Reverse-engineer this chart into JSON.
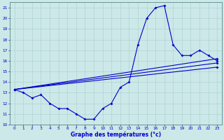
{
  "title": "Graphe des températures (°c)",
  "bg_color": "#cce8e8",
  "grid_color": "#aacece",
  "line_color": "#0000cc",
  "xlim": [
    -0.5,
    23.5
  ],
  "ylim": [
    10,
    21.5
  ],
  "xticks": [
    0,
    1,
    2,
    3,
    4,
    5,
    6,
    7,
    8,
    9,
    10,
    11,
    12,
    13,
    14,
    15,
    16,
    17,
    18,
    19,
    20,
    21,
    22,
    23
  ],
  "yticks": [
    10,
    11,
    12,
    13,
    14,
    15,
    16,
    17,
    18,
    19,
    20,
    21
  ],
  "curve_x": [
    0,
    1,
    2,
    3,
    4,
    5,
    6,
    7,
    8,
    9,
    10,
    11,
    12,
    13,
    14,
    15,
    16,
    17,
    18,
    19,
    20,
    21,
    22,
    23
  ],
  "curve_y": [
    13.3,
    13.0,
    12.5,
    12.8,
    12.0,
    11.5,
    11.5,
    11.0,
    10.5,
    10.5,
    11.5,
    12.0,
    13.5,
    14.0,
    17.5,
    20.0,
    21.0,
    21.2,
    17.5,
    16.5,
    16.5,
    17.0,
    16.5,
    16.0
  ],
  "line1_x": [
    0,
    23
  ],
  "line1_y": [
    13.3,
    15.8
  ],
  "line2_x": [
    0,
    23
  ],
  "line2_y": [
    13.3,
    16.2
  ],
  "line3_x": [
    0,
    23
  ],
  "line3_y": [
    13.3,
    15.4
  ]
}
